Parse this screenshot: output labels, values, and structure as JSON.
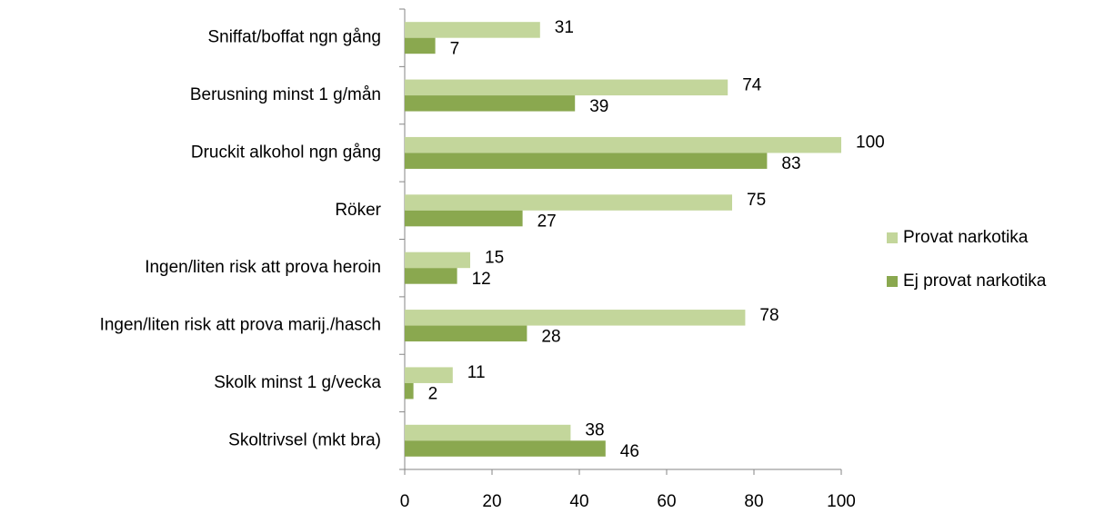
{
  "chart_data": {
    "type": "hbar",
    "categories": [
      "Sniffat/boffat ngn gång",
      "Berusning minst 1 g/mån",
      "Druckit alkohol ngn gång",
      "Röker",
      "Ingen/liten risk att prova heroin",
      "Ingen/liten risk att prova marij./hasch",
      "Skolk minst 1 g/vecka",
      "Skoltrivsel (mkt bra)"
    ],
    "series": [
      {
        "name": "Provat narkotika",
        "color": "#c3d69b",
        "values": [
          31,
          74,
          100,
          75,
          15,
          78,
          11,
          38
        ]
      },
      {
        "name": "Ej provat narkotika",
        "color": "#8aa84f",
        "values": [
          7,
          39,
          83,
          27,
          12,
          28,
          2,
          46
        ]
      }
    ],
    "xlim": [
      0,
      100
    ],
    "xticks": [
      0,
      20,
      40,
      60,
      80,
      100
    ],
    "grid": false,
    "legend": "right"
  }
}
